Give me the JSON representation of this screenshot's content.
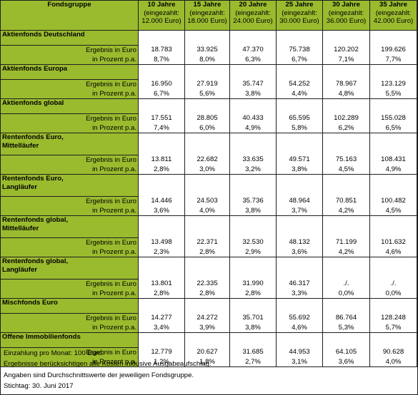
{
  "header": {
    "label": "Fondsgruppe",
    "periods": [
      {
        "years": "10 Jahre",
        "paid_in": "(eingezahlt:",
        "amount": "12.000 Euro)"
      },
      {
        "years": "15 Jahre",
        "paid_in": "(eingezahlt:",
        "amount": "18.000 Euro)"
      },
      {
        "years": "20 Jahre",
        "paid_in": "(eingezahlt:",
        "amount": "24.000 Euro)"
      },
      {
        "years": "25 Jahre",
        "paid_in": "(eingezahlt:",
        "amount": "30.000 Euro)"
      },
      {
        "years": "30 Jahre",
        "paid_in": "(eingezahlt:",
        "amount": "36.000 Euro)"
      },
      {
        "years": "35 Jahre",
        "paid_in": "(eingezahlt:",
        "amount": "42.000 Euro)"
      }
    ]
  },
  "row_labels": {
    "euro": "Ergebnis in Euro",
    "pct": "in Prozent p.a."
  },
  "groups": [
    {
      "name": "Aktienfonds Deutschland",
      "euro": [
        "18.783",
        "33.925",
        "47.370",
        "75.738",
        "120.202",
        "199.626"
      ],
      "pct": [
        "8,7%",
        "8,0%",
        "6,3%",
        "6,7%",
        "7,1%",
        "7,7%"
      ]
    },
    {
      "name": "Aktienfonds Europa",
      "euro": [
        "16.950",
        "27.919",
        "35.747",
        "54.252",
        "78.967",
        "123.129"
      ],
      "pct": [
        "6,7%",
        "5,6%",
        "3,8%",
        "4,4%",
        "4,8%",
        "5,5%"
      ]
    },
    {
      "name": "Aktienfonds global",
      "euro": [
        "17.551",
        "28.805",
        "40.433",
        "65.595",
        "102.289",
        "155.028"
      ],
      "pct": [
        "7,4%",
        "6,0%",
        "4,9%",
        "5,8%",
        "6,2%",
        "6,5%"
      ]
    },
    {
      "name": "Rentenfonds Euro, Mittelläufer",
      "euro": [
        "13.811",
        "22.682",
        "33.635",
        "49.571",
        "75.163",
        "108.431"
      ],
      "pct": [
        "2,8%",
        "3,0%",
        "3,2%",
        "3,8%",
        "4,5%",
        "4,9%"
      ]
    },
    {
      "name": "Rentenfonds Euro, Langläufer",
      "euro": [
        "14.446",
        "24.503",
        "35.736",
        "48.964",
        "70.851",
        "100.482"
      ],
      "pct": [
        "3,6%",
        "4,0%",
        "3,8%",
        "3,7%",
        "4,2%",
        "4,5%"
      ]
    },
    {
      "name": "Rentenfonds global, Mittelläufer",
      "euro": [
        "13.498",
        "22.371",
        "32.530",
        "48.132",
        "71.199",
        "101.632"
      ],
      "pct": [
        "2,3%",
        "2,8%",
        "2,9%",
        "3,6%",
        "4,2%",
        "4,6%"
      ]
    },
    {
      "name": "Rentenfonds global, Langläufer",
      "euro": [
        "13.801",
        "22.335",
        "31.990",
        "46.317",
        "./.",
        "./."
      ],
      "pct": [
        "2,8%",
        "2,8%",
        "2,8%",
        "3,3%",
        "0,0%",
        "0,0%"
      ]
    },
    {
      "name": "Mischfonds Euro",
      "euro": [
        "14.277",
        "24.272",
        "35.701",
        "55.692",
        "86.764",
        "128.248"
      ],
      "pct": [
        "3,4%",
        "3,9%",
        "3,8%",
        "4,6%",
        "5,3%",
        "5,7%"
      ]
    },
    {
      "name": "Offene Immobilienfonds",
      "euro": [
        "12.779",
        "20.627",
        "31.685",
        "44.953",
        "64.105",
        "90.628"
      ],
      "pct": [
        "1,2%",
        "1,8%",
        "2,7%",
        "3,1%",
        "3,6%",
        "4,0%"
      ]
    }
  ],
  "notes": [
    "Einzahlung pro Monat: 100 Euro.",
    "Ergebnisse berücksichtigen alle Kosten inklusive Ausgabeaufschlag.",
    "Angaben sind Durchschnittswerte der jeweiligen Fondsgruppe.",
    "Stichtag: 30. Juni 2017"
  ],
  "colors": {
    "header_green": "#9bbb2e",
    "border": "#1f1f1f"
  }
}
